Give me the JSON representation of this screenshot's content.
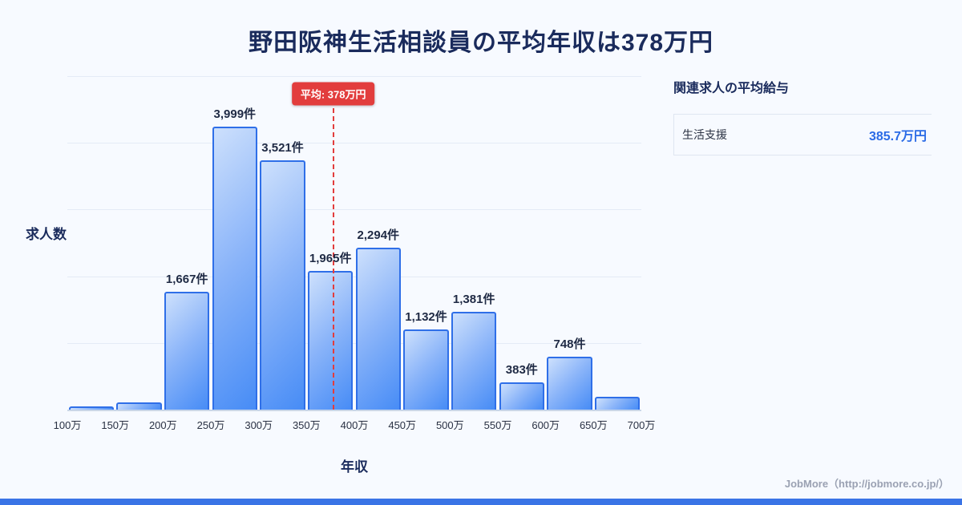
{
  "title": "野田阪神生活相談員の平均年収は378万円",
  "chart_data": {
    "type": "bar",
    "title": "野田阪神生活相談員の平均年収は378万円",
    "xlabel": "年収",
    "ylabel": "求人数",
    "x_range": [
      100,
      700
    ],
    "tick_labels": [
      "100万",
      "150万",
      "200万",
      "250万",
      "300万",
      "350万",
      "400万",
      "450万",
      "500万",
      "550万",
      "600万",
      "650万",
      "700万"
    ],
    "bins": [
      {
        "range": "100万-150万",
        "value": 45,
        "label": ""
      },
      {
        "range": "150万-200万",
        "value": 100,
        "label": ""
      },
      {
        "range": "200万-250万",
        "value": 1667,
        "label": "1,667件"
      },
      {
        "range": "250万-300万",
        "value": 3999,
        "label": "3,999件"
      },
      {
        "range": "300万-350万",
        "value": 3521,
        "label": "3,521件"
      },
      {
        "range": "350万-400万",
        "value": 1965,
        "label": "1,965件"
      },
      {
        "range": "400万-450万",
        "value": 2294,
        "label": "2,294件"
      },
      {
        "range": "450万-500万",
        "value": 1132,
        "label": "1,132件"
      },
      {
        "range": "500万-550万",
        "value": 1381,
        "label": "1,381件"
      },
      {
        "range": "550万-600万",
        "value": 383,
        "label": "383件"
      },
      {
        "range": "600万-650万",
        "value": 748,
        "label": "748件"
      },
      {
        "range": "650万-700万",
        "value": 180,
        "label": ""
      }
    ],
    "average_line": {
      "x_value": 378,
      "label": "平均: 378万円"
    },
    "grid": true,
    "legend": "none",
    "colors": {
      "background": "#f7faff",
      "bar_fill_light": "#cde0fc",
      "bar_fill_dark": "#478cf6",
      "bar_border": "#2f6fe8",
      "average_line": "#e23d3d",
      "title_text": "#1a2b5c",
      "accent_strip": "#3a74e6",
      "value_blue": "#2b6be6"
    }
  },
  "side_panel": {
    "heading": "関連求人の平均給与",
    "rows": [
      {
        "label": "生活支援",
        "value": "385.7万円"
      }
    ]
  },
  "footer": {
    "credit": "JobMore（http://jobmore.co.jp/）"
  }
}
